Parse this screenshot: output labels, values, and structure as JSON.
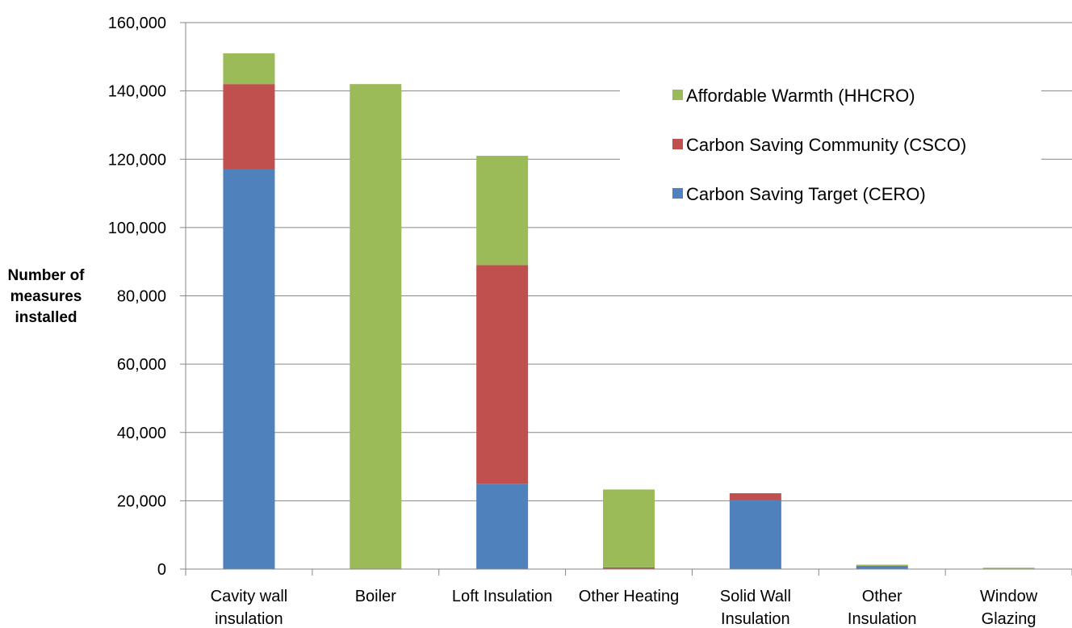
{
  "chart_data": {
    "type": "bar",
    "stacked": true,
    "categories": [
      [
        "Cavity wall",
        "insulation"
      ],
      [
        "Boiler"
      ],
      [
        "Loft Insulation"
      ],
      [
        "Other Heating"
      ],
      [
        "Solid Wall",
        "Insulation"
      ],
      [
        "Other",
        "Insulation"
      ],
      [
        "Window",
        "Glazing"
      ]
    ],
    "series": [
      {
        "name": "Carbon Saving Target (CERO)",
        "color": "#4f81bd",
        "values": [
          117000,
          0,
          25000,
          0,
          20200,
          800,
          0
        ]
      },
      {
        "name": "Carbon Saving Community (CSCO)",
        "color": "#c0504d",
        "values": [
          25000,
          0,
          64000,
          500,
          2000,
          200,
          0
        ]
      },
      {
        "name": "Affordable Warmth (HHCRO)",
        "color": "#9bbb59",
        "values": [
          9000,
          142000,
          32000,
          22800,
          0,
          300,
          400
        ]
      }
    ],
    "ylabel": [
      "Number of",
      "measures",
      "installed"
    ],
    "ylim": [
      0,
      160000
    ],
    "yticks": [
      "0",
      "20,000",
      "40,000",
      "60,000",
      "80,000",
      "100,000",
      "120,000",
      "140,000",
      "160,000"
    ],
    "ytick_values": [
      0,
      20000,
      40000,
      60000,
      80000,
      100000,
      120000,
      140000,
      160000
    ],
    "legend_order": [
      "Affordable Warmth (HHCRO)",
      "Carbon Saving Community (CSCO)",
      "Carbon Saving Target (CERO)"
    ],
    "legend_position": "top-right",
    "grid": true
  }
}
